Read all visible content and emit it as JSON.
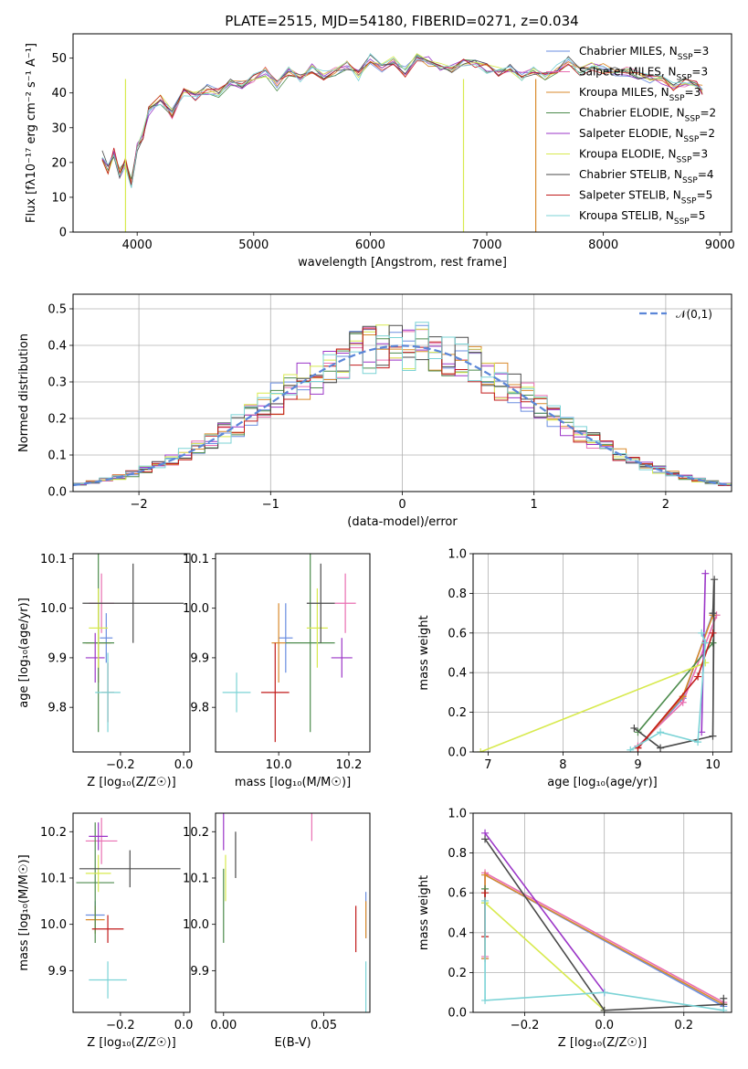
{
  "title": "PLATE=2515, MJD=54180, FIBERID=0271, z=0.034",
  "colors": [
    "#6a8ee0",
    "#e96fb2",
    "#d98a2b",
    "#4c8b4c",
    "#9b35c7",
    "#d8ea4f",
    "#4a4a4a",
    "#c11a1a",
    "#7bd3d6"
  ],
  "legend": [
    {
      "base": "Chabrier MILES, N",
      "sub": "SSP",
      "val": "=3"
    },
    {
      "base": "Salpeter MILES, N",
      "sub": "SSP",
      "val": "=3"
    },
    {
      "base": "Kroupa MILES, N",
      "sub": "SSP",
      "val": "=3"
    },
    {
      "base": "Chabrier ELODIE, N",
      "sub": "SSP",
      "val": "=2"
    },
    {
      "base": "Salpeter ELODIE, N",
      "sub": "SSP",
      "val": "=2"
    },
    {
      "base": "Kroupa ELODIE, N",
      "sub": "SSP",
      "val": "=3"
    },
    {
      "base": "Chabrier STELIB, N",
      "sub": "SSP",
      "val": "=4"
    },
    {
      "base": "Salpeter STELIB, N",
      "sub": "SSP",
      "val": "=5"
    },
    {
      "base": "Kroupa STELIB, N",
      "sub": "SSP",
      "val": "=5"
    }
  ],
  "chart_data": [
    {
      "id": "spectrum",
      "type": "line",
      "xlabel": "wavelength [Angstrom, rest frame]",
      "ylabel": "Flux [fλ10⁻¹⁷ erg cm⁻² s⁻¹ A⁻¹]",
      "xlim": [
        3450,
        9100
      ],
      "ylim": [
        0,
        57
      ],
      "xticks": [
        4000,
        5000,
        6000,
        7000,
        8000,
        9000
      ],
      "yticks": [
        0,
        10,
        20,
        30,
        40,
        50
      ],
      "grid": false,
      "legend": "right",
      "x": [
        3700,
        3750,
        3800,
        3850,
        3900,
        3950,
        4000,
        4050,
        4100,
        4200,
        4300,
        4400,
        4500,
        4600,
        4700,
        4800,
        4900,
        5000,
        5100,
        5200,
        5300,
        5400,
        5500,
        5600,
        5700,
        5800,
        5900,
        6000,
        6100,
        6200,
        6300,
        6400,
        6500,
        6600,
        6700,
        6800,
        6900,
        7000,
        7100,
        7200,
        7300,
        7400,
        7500,
        7600,
        7700,
        7800,
        7900,
        8000,
        8100,
        8200,
        8300,
        8400,
        8500,
        8600,
        8700,
        8800,
        8850
      ],
      "y": [
        22,
        18,
        23,
        17,
        20,
        14,
        24,
        28,
        35,
        38,
        34,
        40,
        39,
        41,
        40,
        43,
        42,
        44,
        46,
        42,
        46,
        44,
        47,
        45,
        46,
        48,
        45,
        50,
        47,
        49,
        46,
        50,
        49,
        48,
        47,
        49,
        48,
        47,
        46,
        47,
        45,
        46,
        45,
        47,
        49,
        46,
        48,
        47,
        46,
        46,
        45,
        44,
        44,
        42,
        43,
        42,
        41
      ],
      "drops": [
        {
          "x": 3900,
          "y": 0
        },
        {
          "x": 6800,
          "y": 0
        },
        {
          "x": 7420,
          "y": 0
        }
      ]
    },
    {
      "id": "residual-histogram",
      "type": "bar",
      "xlabel": "(data-model)/error",
      "ylabel": "Normed distribution",
      "xlim": [
        -2.5,
        2.5
      ],
      "ylim": [
        0,
        0.54
      ],
      "xticks": [
        -2,
        -1,
        0,
        1,
        2
      ],
      "xtick_labels": [
        "−2",
        "−1",
        "0",
        "1",
        "2"
      ],
      "yticks": [
        0,
        0.1,
        0.2,
        0.3,
        0.4,
        0.5
      ],
      "ytick_labels": [
        "0.0",
        "0.1",
        "0.2",
        "0.3",
        "0.4",
        "0.5"
      ],
      "grid": true,
      "legend": "top-right",
      "reference": {
        "name": "𝒩(0,1)",
        "mean": 0,
        "sigma": 1,
        "color": "#5b86d8"
      },
      "bin_width": 0.1
    },
    {
      "id": "age-vs-Z",
      "type": "scatter",
      "xlabel": "Z [log₁₀(Z/Z☉)]",
      "ylabel": "age  [log₁₀(age/yr)]",
      "xlim": [
        -0.35,
        0.02
      ],
      "ylim": [
        9.71,
        10.11
      ],
      "xticks": [
        -0.2,
        0.0
      ],
      "xtick_labels": [
        "−0.2",
        "0.0"
      ],
      "yticks": [
        9.8,
        9.9,
        10.0,
        10.1
      ],
      "ytick_labels": [
        "9.8",
        "9.9",
        "10.0",
        "10.1"
      ],
      "grid": false,
      "points": [
        {
          "s": 0,
          "x": -0.245,
          "y": 9.94,
          "xe": 0.02,
          "ye": 0.05
        },
        {
          "s": 1,
          "x": -0.26,
          "y": 10.01,
          "xe": 0.04,
          "ye": 0.06
        },
        {
          "s": 2,
          "x": -0.27,
          "y": 9.93,
          "xe": 0.04,
          "ye": 0.08
        },
        {
          "s": 3,
          "x": -0.27,
          "y": 9.93,
          "xe": 0.05,
          "ye": 0.18
        },
        {
          "s": 4,
          "x": -0.28,
          "y": 9.9,
          "xe": 0.03,
          "ye": 0.05
        },
        {
          "s": 5,
          "x": -0.27,
          "y": 9.96,
          "xe": 0.03,
          "ye": 0.08
        },
        {
          "s": 6,
          "x": -0.16,
          "y": 10.01,
          "xe": 0.16,
          "ye": 0.08
        },
        {
          "s": 7,
          "x": -0.24,
          "y": 9.83,
          "xe": 0.02,
          "ye": 0.06
        },
        {
          "s": 8,
          "x": -0.24,
          "y": 9.83,
          "xe": 0.04,
          "ye": 0.08
        }
      ]
    },
    {
      "id": "age-vs-mass",
      "type": "scatter",
      "xlabel": "mass [log₁₀(M/M☉)]",
      "ylabel": "",
      "xlim": [
        9.82,
        10.26
      ],
      "ylim": [
        9.71,
        10.11
      ],
      "xticks": [
        10.0,
        10.2
      ],
      "xtick_labels": [
        "10.0",
        "10.2"
      ],
      "yticks": [
        9.8,
        9.9,
        10.0,
        10.1
      ],
      "ytick_labels": [
        "9.8",
        "9.9",
        "10.0",
        "10.1"
      ],
      "grid": false,
      "points": [
        {
          "s": 0,
          "x": 10.02,
          "y": 9.94,
          "xe": 0.02,
          "ye": 0.07
        },
        {
          "s": 1,
          "x": 10.19,
          "y": 10.01,
          "xe": 0.03,
          "ye": 0.06
        },
        {
          "s": 2,
          "x": 10.0,
          "y": 9.93,
          "xe": 0.02,
          "ye": 0.08
        },
        {
          "s": 3,
          "x": 10.09,
          "y": 9.93,
          "xe": 0.07,
          "ye": 0.18
        },
        {
          "s": 4,
          "x": 10.18,
          "y": 9.9,
          "xe": 0.03,
          "ye": 0.04
        },
        {
          "s": 5,
          "x": 10.11,
          "y": 9.96,
          "xe": 0.03,
          "ye": 0.08
        },
        {
          "s": 6,
          "x": 10.12,
          "y": 10.01,
          "xe": 0.04,
          "ye": 0.08
        },
        {
          "s": 7,
          "x": 9.99,
          "y": 9.83,
          "xe": 0.04,
          "ye": 0.1
        },
        {
          "s": 8,
          "x": 9.88,
          "y": 9.83,
          "xe": 0.04,
          "ye": 0.04
        }
      ]
    },
    {
      "id": "mass-weight-vs-age",
      "type": "line",
      "xlabel": "age  [log₁₀(age/yr)]",
      "ylabel": "mass weight",
      "xlim": [
        6.8,
        10.25
      ],
      "ylim": [
        0,
        1.0
      ],
      "xticks": [
        7,
        8,
        9,
        10
      ],
      "xtick_labels": [
        "7",
        "8",
        "9",
        "10"
      ],
      "yticks": [
        0,
        0.2,
        0.4,
        0.6,
        0.8,
        1.0
      ],
      "ytick_labels": [
        "0.0",
        "0.2",
        "0.4",
        "0.6",
        "0.8",
        "1.0"
      ],
      "grid": true,
      "series": [
        {
          "s": 0,
          "x": [
            9.0,
            9.6,
            10.0
          ],
          "y": [
            0.02,
            0.27,
            0.7
          ]
        },
        {
          "s": 1,
          "x": [
            9.0,
            9.6,
            10.05
          ],
          "y": [
            0.03,
            0.25,
            0.69
          ]
        },
        {
          "s": 2,
          "x": [
            9.0,
            9.6,
            10.0
          ],
          "y": [
            0.02,
            0.28,
            0.69
          ]
        },
        {
          "s": 3,
          "x": [
            9.0,
            10.0
          ],
          "y": [
            0.1,
            0.55
          ]
        },
        {
          "s": 4,
          "x": [
            9.85,
            9.9
          ],
          "y": [
            0.1,
            0.9
          ]
        },
        {
          "s": 5,
          "x": [
            6.9,
            9.9
          ],
          "y": [
            0.0,
            0.45
          ]
        },
        {
          "s": 6,
          "x": [
            8.95,
            9.3,
            10.0,
            10.02,
            10.0
          ],
          "y": [
            0.12,
            0.02,
            0.08,
            0.87,
            0.7
          ]
        },
        {
          "s": 7,
          "x": [
            9.0,
            9.8,
            10.0
          ],
          "y": [
            0.02,
            0.38,
            0.6
          ]
        },
        {
          "s": 8,
          "x": [
            8.9,
            9.3,
            9.8,
            9.9,
            9.85
          ],
          "y": [
            0.01,
            0.1,
            0.05,
            0.55,
            0.6
          ]
        }
      ]
    },
    {
      "id": "mass-vs-Z",
      "type": "scatter",
      "xlabel": "Z [log₁₀(Z/Z☉)]",
      "ylabel": "mass [log₁₀(M/M☉)]",
      "xlim": [
        -0.35,
        0.02
      ],
      "ylim": [
        9.81,
        10.24
      ],
      "xticks": [
        -0.2,
        0.0
      ],
      "xtick_labels": [
        "−0.2",
        "0.0"
      ],
      "yticks": [
        9.9,
        10.0,
        10.1,
        10.2
      ],
      "ytick_labels": [
        "9.9",
        "10.0",
        "10.1",
        "10.2"
      ],
      "grid": false,
      "points": [
        {
          "s": 0,
          "x": -0.28,
          "y": 10.02,
          "xe": 0.03,
          "ye": 0.03
        },
        {
          "s": 1,
          "x": -0.26,
          "y": 10.18,
          "xe": 0.05,
          "ye": 0.05
        },
        {
          "s": 2,
          "x": -0.28,
          "y": 10.01,
          "xe": 0.03,
          "ye": 0.03
        },
        {
          "s": 3,
          "x": -0.28,
          "y": 10.09,
          "xe": 0.06,
          "ye": 0.13
        },
        {
          "s": 4,
          "x": -0.27,
          "y": 10.19,
          "xe": 0.03,
          "ye": 0.03
        },
        {
          "s": 5,
          "x": -0.27,
          "y": 10.11,
          "xe": 0.04,
          "ye": 0.04
        },
        {
          "s": 6,
          "x": -0.17,
          "y": 10.12,
          "xe": 0.16,
          "ye": 0.04
        },
        {
          "s": 7,
          "x": -0.24,
          "y": 9.99,
          "xe": 0.05,
          "ye": 0.03
        },
        {
          "s": 8,
          "x": -0.24,
          "y": 9.88,
          "xe": 0.06,
          "ye": 0.04
        }
      ]
    },
    {
      "id": "mass-vs-EBV",
      "type": "scatter",
      "xlabel": "E(B-V)",
      "ylabel": "",
      "xlim": [
        -0.004,
        0.073
      ],
      "ylim": [
        9.81,
        10.24
      ],
      "xticks": [
        0.0,
        0.05
      ],
      "xtick_labels": [
        "0.00",
        "0.05"
      ],
      "yticks": [
        9.9,
        10.0,
        10.1,
        10.2
      ],
      "ytick_labels": [
        "9.9",
        "10.0",
        "10.1",
        "10.2"
      ],
      "grid": false,
      "points": [
        {
          "s": 0,
          "x": 0.071,
          "y": 10.02,
          "xe": 0,
          "ye": 0.05
        },
        {
          "s": 1,
          "x": 0.044,
          "y": 10.21,
          "xe": 0,
          "ye": 0.03
        },
        {
          "s": 2,
          "x": 0.071,
          "y": 10.01,
          "xe": 0,
          "ye": 0.04
        },
        {
          "s": 3,
          "x": 0.0,
          "y": 10.04,
          "xe": 0,
          "ye": 0.08
        },
        {
          "s": 4,
          "x": 0.0,
          "y": 10.2,
          "xe": 0,
          "ye": 0.04
        },
        {
          "s": 5,
          "x": 0.001,
          "y": 10.1,
          "xe": 0,
          "ye": 0.05
        },
        {
          "s": 6,
          "x": 0.006,
          "y": 10.15,
          "xe": 0,
          "ye": 0.05
        },
        {
          "s": 7,
          "x": 0.066,
          "y": 9.99,
          "xe": 0,
          "ye": 0.05
        },
        {
          "s": 8,
          "x": 0.071,
          "y": 9.86,
          "xe": 0,
          "ye": 0.06
        }
      ]
    },
    {
      "id": "mass-weight-vs-Z",
      "type": "line",
      "xlabel": "Z [log₁₀(Z/Z☉)]",
      "ylabel": "mass weight",
      "xlim": [
        -0.33,
        0.32
      ],
      "ylim": [
        0,
        1.0
      ],
      "xticks": [
        -0.2,
        0.0,
        0.2
      ],
      "xtick_labels": [
        "−0.2",
        "0.0",
        "0.2"
      ],
      "yticks": [
        0,
        0.2,
        0.4,
        0.6,
        0.8,
        1.0
      ],
      "ytick_labels": [
        "0.0",
        "0.2",
        "0.4",
        "0.6",
        "0.8",
        "1.0"
      ],
      "grid": true,
      "series": [
        {
          "s": 0,
          "x": [
            -0.3,
            -0.3,
            0.3
          ],
          "y": [
            0.27,
            0.69,
            0.03
          ]
        },
        {
          "s": 1,
          "x": [
            -0.3,
            -0.3,
            0.3
          ],
          "y": [
            0.28,
            0.7,
            0.05
          ]
        },
        {
          "s": 2,
          "x": [
            -0.3,
            -0.3,
            0.3
          ],
          "y": [
            0.27,
            0.69,
            0.04
          ]
        },
        {
          "s": 3,
          "x": [
            -0.3,
            -0.3
          ],
          "y": [
            0.55,
            0.62
          ]
        },
        {
          "s": 4,
          "x": [
            -0.3,
            0.0
          ],
          "y": [
            0.9,
            0.1
          ]
        },
        {
          "s": 5,
          "x": [
            -0.3,
            0.0
          ],
          "y": [
            0.55,
            0.01
          ]
        },
        {
          "s": 6,
          "x": [
            -0.3,
            0.0,
            0.3,
            0.3
          ],
          "y": [
            0.87,
            0.01,
            0.04,
            0.07
          ]
        },
        {
          "s": 7,
          "x": [
            -0.3,
            -0.3
          ],
          "y": [
            0.38,
            0.6
          ]
        },
        {
          "s": 8,
          "x": [
            -0.3,
            -0.3,
            0.0,
            0.3
          ],
          "y": [
            0.56,
            0.06,
            0.1,
            0.01
          ]
        }
      ]
    }
  ]
}
